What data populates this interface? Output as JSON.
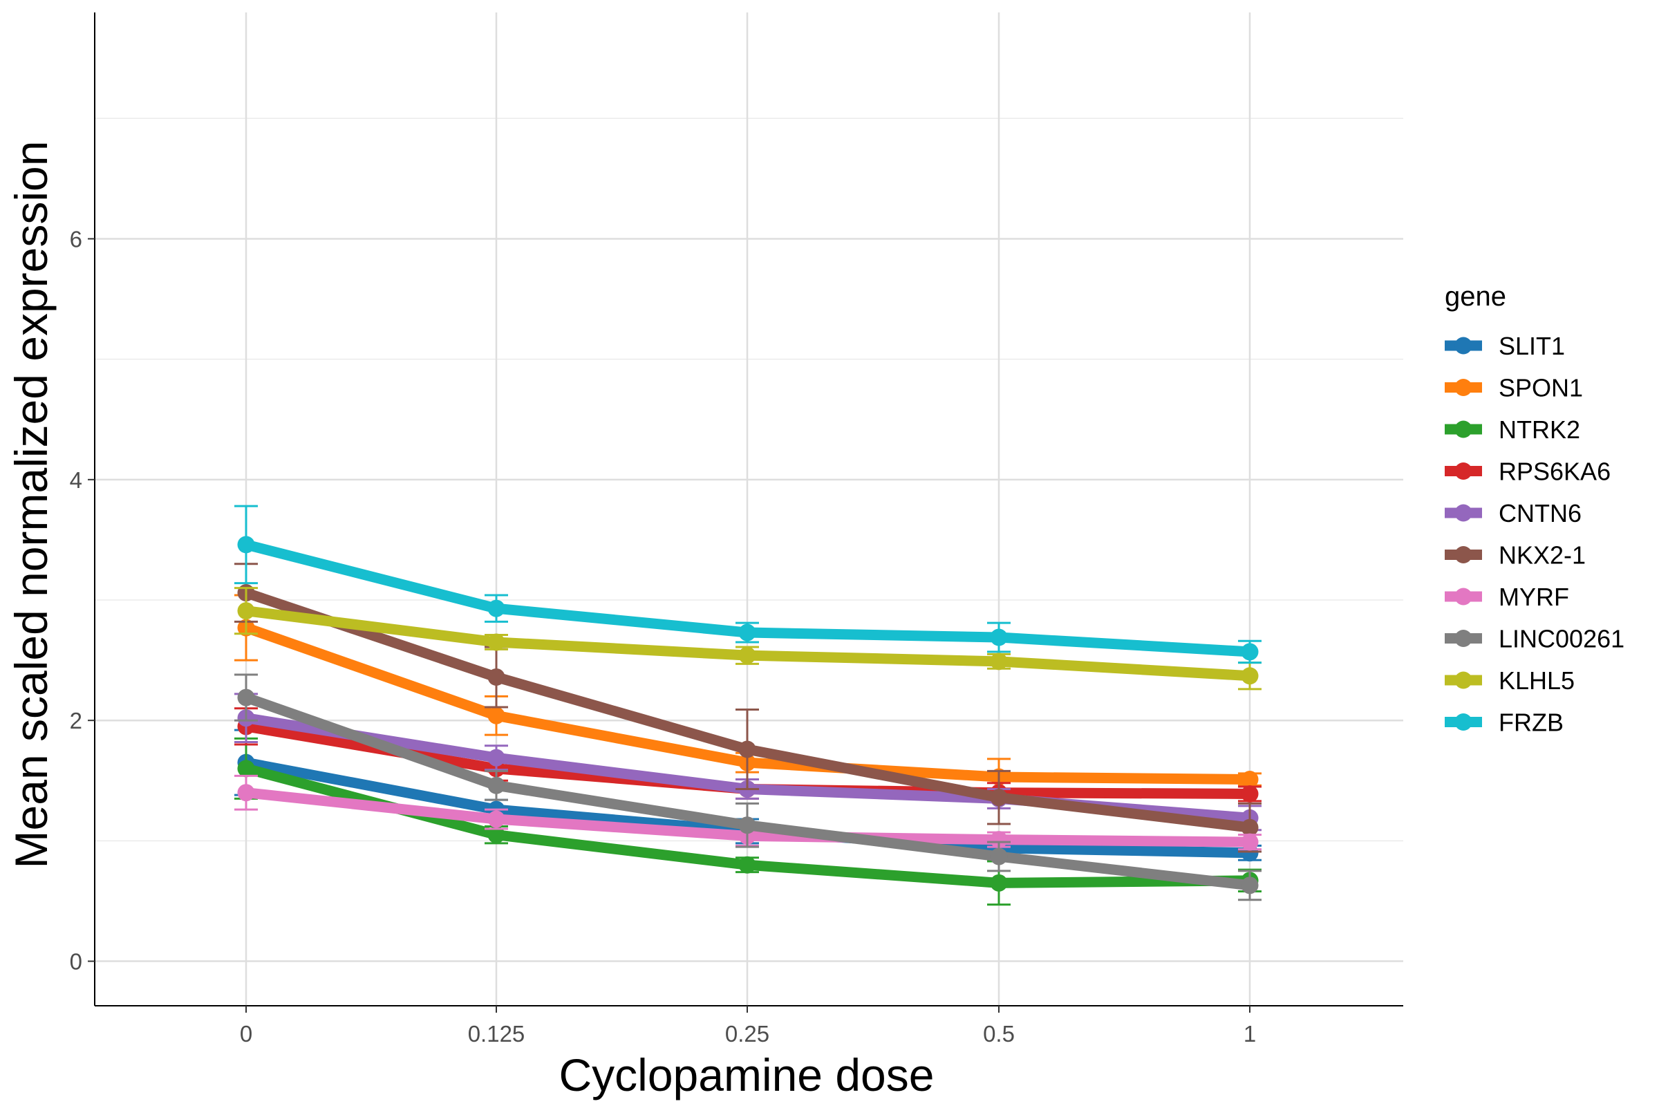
{
  "chart_data": {
    "type": "line",
    "xlabel": "Cyclopamine dose",
    "ylabel": "Mean scaled normalized expression",
    "categories": [
      "0",
      "0.125",
      "0.25",
      "0.5",
      "1"
    ],
    "y_ticks": [
      0,
      2,
      4,
      6
    ],
    "ylim": [
      -0.37,
      7.88
    ],
    "grid": true,
    "legend": {
      "title": "gene",
      "position": "right"
    },
    "series": [
      {
        "name": "SLIT1",
        "color": "#1f77b4",
        "values": [
          1.65,
          1.26,
          1.08,
          0.94,
          0.9
        ],
        "errors": [
          0.27,
          0.08,
          0.1,
          0.08,
          0.06
        ]
      },
      {
        "name": "SPON1",
        "color": "#ff7f0e",
        "values": [
          2.77,
          2.04,
          1.65,
          1.53,
          1.51
        ],
        "errors": [
          0.27,
          0.16,
          0.08,
          0.15,
          0.05
        ]
      },
      {
        "name": "NTRK2",
        "color": "#2ca02c",
        "values": [
          1.6,
          1.05,
          0.8,
          0.65,
          0.67
        ],
        "errors": [
          0.25,
          0.07,
          0.06,
          0.18,
          0.09
        ]
      },
      {
        "name": "RPS6KA6",
        "color": "#d62728",
        "values": [
          1.95,
          1.6,
          1.43,
          1.4,
          1.39
        ],
        "errors": [
          0.15,
          0.1,
          0.08,
          0.08,
          0.06
        ]
      },
      {
        "name": "CNTN6",
        "color": "#9467bd",
        "values": [
          2.02,
          1.69,
          1.43,
          1.35,
          1.19
        ],
        "errors": [
          0.2,
          0.1,
          0.08,
          0.08,
          0.1
        ]
      },
      {
        "name": "NKX2-1",
        "color": "#8c564b",
        "values": [
          3.06,
          2.36,
          1.76,
          1.36,
          1.11
        ],
        "errors": [
          0.24,
          0.25,
          0.33,
          0.22,
          0.2
        ]
      },
      {
        "name": "MYRF",
        "color": "#e377c2",
        "values": [
          1.4,
          1.18,
          1.04,
          1.01,
          0.99
        ],
        "errors": [
          0.14,
          0.08,
          0.08,
          0.06,
          0.06
        ]
      },
      {
        "name": "LINC00261",
        "color": "#7f7f7f",
        "values": [
          2.19,
          1.46,
          1.13,
          0.87,
          0.63
        ],
        "errors": [
          0.19,
          0.12,
          0.18,
          0.12,
          0.12
        ]
      },
      {
        "name": "KLHL5",
        "color": "#bcbd22",
        "values": [
          2.91,
          2.65,
          2.54,
          2.49,
          2.37
        ],
        "errors": [
          0.19,
          0.06,
          0.07,
          0.06,
          0.11
        ]
      },
      {
        "name": "FRZB",
        "color": "#17becf",
        "values": [
          3.46,
          2.93,
          2.73,
          2.69,
          2.57
        ],
        "errors": [
          0.32,
          0.11,
          0.08,
          0.12,
          0.09
        ]
      }
    ]
  }
}
